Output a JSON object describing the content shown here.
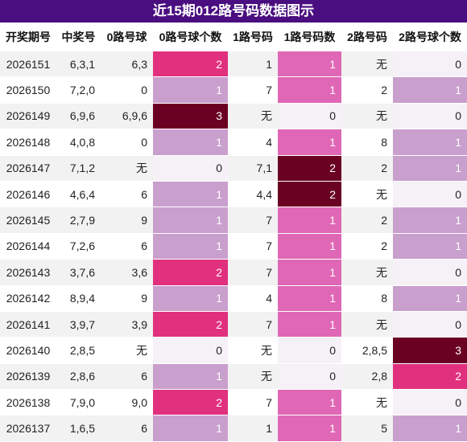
{
  "title": "近15期012路号码数据图示",
  "table": {
    "headers": [
      "开奖期号",
      "中奖号",
      "0路号球",
      "0路号球个数",
      "1路号码",
      "1路号码数",
      "2路号码",
      "2路号球个数"
    ],
    "rows": [
      [
        "2026151",
        "6,3,1",
        "6,3",
        "2",
        "1",
        "1",
        "无",
        "0"
      ],
      [
        "2026150",
        "7,2,0",
        "0",
        "1",
        "7",
        "1",
        "2",
        "1"
      ],
      [
        "2026149",
        "6,9,6",
        "6,9,6",
        "3",
        "无",
        "0",
        "无",
        "0"
      ],
      [
        "2026148",
        "4,0,8",
        "0",
        "1",
        "4",
        "1",
        "8",
        "1"
      ],
      [
        "2026147",
        "7,1,2",
        "无",
        "0",
        "7,1",
        "2",
        "2",
        "1"
      ],
      [
        "2026146",
        "4,6,4",
        "6",
        "1",
        "4,4",
        "2",
        "无",
        "0"
      ],
      [
        "2026145",
        "2,7,9",
        "9",
        "1",
        "7",
        "1",
        "2",
        "1"
      ],
      [
        "2026144",
        "7,2,6",
        "6",
        "1",
        "7",
        "1",
        "2",
        "1"
      ],
      [
        "2026143",
        "3,7,6",
        "3,6",
        "2",
        "7",
        "1",
        "无",
        "0"
      ],
      [
        "2026142",
        "8,9,4",
        "9",
        "1",
        "4",
        "1",
        "8",
        "1"
      ],
      [
        "2026141",
        "3,9,7",
        "3,9",
        "2",
        "7",
        "1",
        "无",
        "0"
      ],
      [
        "2026140",
        "2,8,5",
        "无",
        "0",
        "无",
        "0",
        "2,8,5",
        "3"
      ],
      [
        "2026139",
        "2,8,6",
        "6",
        "1",
        "无",
        "0",
        "2,8",
        "2"
      ],
      [
        "2026138",
        "7,9,0",
        "9,0",
        "2",
        "7",
        "1",
        "无",
        "0"
      ],
      [
        "2026137",
        "1,6,5",
        "6",
        "1",
        "1",
        "1",
        "5",
        "1"
      ]
    ],
    "heat": {
      "3": [
        "#f6f1f7",
        "#c99fcd",
        "#e0307e",
        "#6a0022"
      ],
      "5": [
        "#f6f1f7",
        "#e067b5",
        "#6a0022"
      ],
      "7": [
        "#f6f1f7",
        "#c99fcd",
        "#e0307e",
        "#6a0022"
      ]
    }
  }
}
